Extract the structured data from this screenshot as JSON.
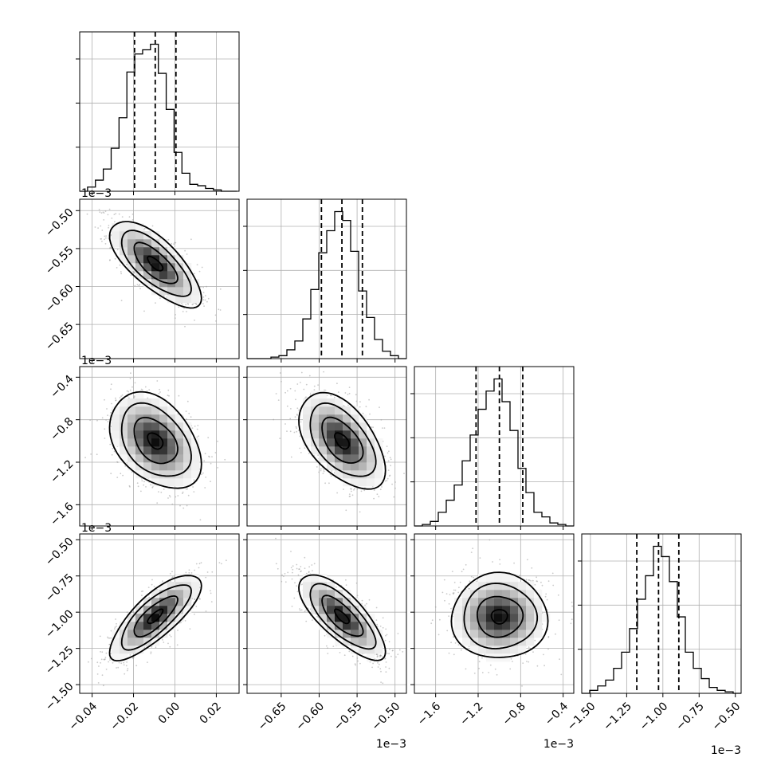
{
  "chart_data": {
    "type": "corner",
    "n_params": 4,
    "quantiles": [
      0.16,
      0.5,
      0.84
    ],
    "colors": {
      "line": "#000000",
      "grid": "#b0b0b0",
      "scatter": "#9e9e9e",
      "density_dark": "#000000"
    },
    "params": [
      {
        "index": 0,
        "range": [
          -0.046,
          0.031
        ],
        "ticks": [
          -0.04,
          -0.02,
          0.0,
          0.02
        ],
        "tick_labels": [
          "−0.04",
          "−0.02",
          "0.00",
          "0.02"
        ],
        "offset_label": "",
        "quantile_values": [
          -0.0195,
          -0.0095,
          0.0005
        ],
        "hist": {
          "start": -0.046,
          "step": 0.0038,
          "counts": [
            0,
            3,
            8,
            16,
            31,
            53,
            86,
            99,
            102,
            106,
            85,
            59,
            28,
            13,
            5,
            4,
            2,
            1,
            0,
            0
          ]
        },
        "mean": [
          -0.0095
        ],
        "std": 0.0105
      },
      {
        "index": 1,
        "range": [
          -0.695,
          -0.485
        ],
        "ticks": [
          -0.65,
          -0.6,
          -0.55,
          -0.5
        ],
        "tick_labels": [
          "−0.65",
          "−0.60",
          "−0.55",
          "−0.50"
        ],
        "offset_label": "1e−3",
        "quantile_values": [
          -0.597,
          -0.57,
          -0.543
        ],
        "hist": {
          "start": -0.695,
          "step": 0.0105,
          "counts": [
            0,
            0,
            0,
            1,
            2,
            6,
            12,
            27,
            47,
            72,
            87,
            100,
            94,
            73,
            46,
            28,
            13,
            5,
            2,
            0
          ]
        },
        "mean": [
          -0.57
        ],
        "std": 0.027
      },
      {
        "index": 2,
        "range": [
          -1.8,
          -0.3
        ],
        "ticks": [
          -1.6,
          -1.2,
          -0.8,
          -0.4
        ],
        "tick_labels": [
          "−1.6",
          "−1.2",
          "−0.8",
          "−0.4"
        ],
        "offset_label": "1e−3",
        "quantile_values": [
          -1.22,
          -1.0,
          -0.78
        ],
        "hist": {
          "start": -1.8,
          "step": 0.075,
          "counts": [
            0,
            1,
            3,
            9,
            17,
            27,
            43,
            60,
            77,
            89,
            97,
            82,
            63,
            38,
            22,
            9,
            6,
            2,
            1,
            0
          ]
        },
        "mean": [
          -1.0
        ],
        "std": 0.215
      },
      {
        "index": 3,
        "range": [
          -1.56,
          -0.46
        ],
        "ticks": [
          -1.5,
          -1.25,
          -1.0,
          -0.75,
          -0.5
        ],
        "tick_labels": [
          "−1.50",
          "−1.25",
          "−1.00",
          "−0.75",
          "−0.50"
        ],
        "offset_label": "1e−3",
        "quantile_values": [
          -1.18,
          -1.03,
          -0.89
        ],
        "hist": {
          "start": -1.56,
          "step": 0.055,
          "counts": [
            0,
            2,
            5,
            9,
            17,
            28,
            44,
            64,
            80,
            100,
            93,
            76,
            52,
            28,
            17,
            10,
            4,
            2,
            1,
            0
          ]
        },
        "mean": [
          -1.03
        ],
        "std": 0.14
      }
    ],
    "pairs": [
      {
        "row": 1,
        "col": 0,
        "corr": -0.72
      },
      {
        "row": 2,
        "col": 0,
        "corr": -0.38
      },
      {
        "row": 2,
        "col": 1,
        "corr": -0.52
      },
      {
        "row": 3,
        "col": 0,
        "corr": 0.78
      },
      {
        "row": 3,
        "col": 1,
        "corr": -0.75
      },
      {
        "row": 3,
        "col": 2,
        "corr": 0.0
      }
    ]
  }
}
